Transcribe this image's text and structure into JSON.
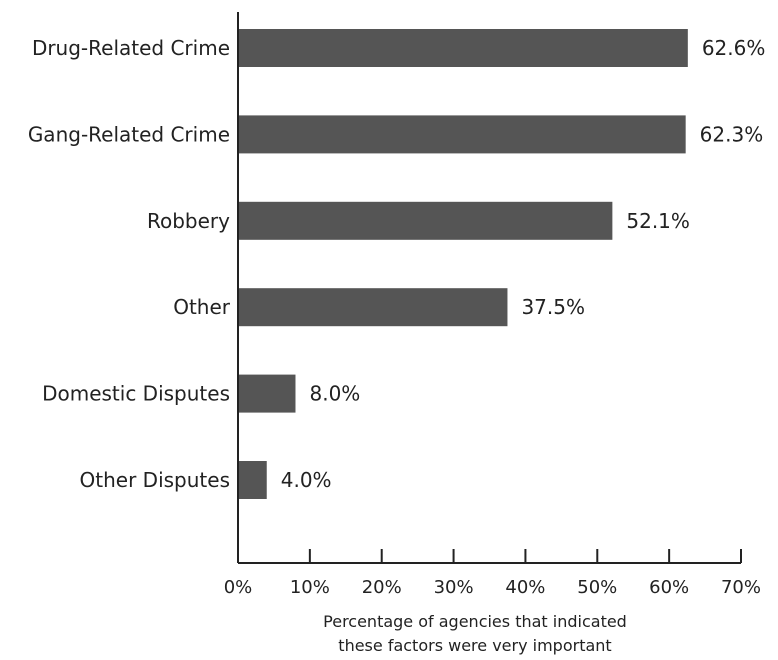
{
  "chart_data": {
    "type": "bar",
    "orientation": "horizontal",
    "categories": [
      "Drug-Related Crime",
      "Gang-Related Crime",
      "Robbery",
      "Other",
      "Domestic Disputes",
      "Other Disputes"
    ],
    "values": [
      62.6,
      62.3,
      52.1,
      37.5,
      8.0,
      4.0
    ],
    "value_labels": [
      "62.6%",
      "62.3%",
      "52.1%",
      "37.5%",
      "8.0%",
      "4.0%"
    ],
    "xlim": [
      0,
      70
    ],
    "xticks": [
      0,
      10,
      20,
      30,
      40,
      50,
      60,
      70
    ],
    "xtick_labels": [
      "0%",
      "10%",
      "20%",
      "30%",
      "40%",
      "50%",
      "60%",
      "70%"
    ],
    "xlabel": [
      "Percentage of agencies that indicated",
      "these factors were very important"
    ],
    "ylabel": "",
    "title": "",
    "grid": false,
    "legend": "none",
    "bar_color": "#555555",
    "axis_color": "#222222"
  }
}
